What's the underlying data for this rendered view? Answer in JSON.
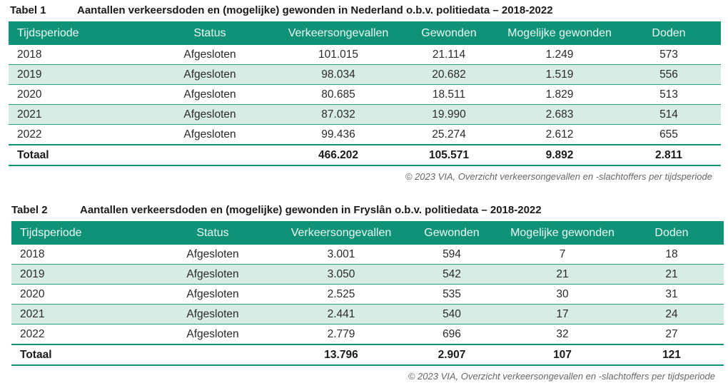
{
  "tables": [
    {
      "number": "Tabel 1",
      "title": "Aantallen verkeersdoden en (mogelijke) gewonden in Nederland o.b.v. politiedata – 2018-2022",
      "headers": [
        "Tijdsperiode",
        "Status",
        "Verkeersongevallen",
        "Gewonden",
        "Mogelijke gewonden",
        "Doden"
      ],
      "rows": [
        [
          "2018",
          "Afgesloten",
          "101.015",
          "21.114",
          "1.249",
          "573"
        ],
        [
          "2019",
          "Afgesloten",
          "98.034",
          "20.682",
          "1.519",
          "556"
        ],
        [
          "2020",
          "Afgesloten",
          "80.685",
          "18.511",
          "1.829",
          "513"
        ],
        [
          "2021",
          "Afgesloten",
          "87.032",
          "19.990",
          "2.683",
          "514"
        ],
        [
          "2022",
          "Afgesloten",
          "99.436",
          "25.274",
          "2.612",
          "655"
        ]
      ],
      "total": [
        "Totaal",
        "",
        "466.202",
        "105.571",
        "9.892",
        "2.811"
      ],
      "source": "© 2023 VIA, Overzicht verkeersongevallen en -slachtoffers per tijdsperiode"
    },
    {
      "number": "Tabel 2",
      "title": "Aantallen verkeersdoden en (mogelijke) gewonden in Fryslân o.b.v. politiedata – 2018-2022",
      "headers": [
        "Tijdsperiode",
        "Status",
        "Verkeersongevallen",
        "Gewonden",
        "Mogelijke gewonden",
        "Doden"
      ],
      "rows": [
        [
          "2018",
          "Afgesloten",
          "3.001",
          "594",
          "7",
          "18"
        ],
        [
          "2019",
          "Afgesloten",
          "3.050",
          "542",
          "21",
          "21"
        ],
        [
          "2020",
          "Afgesloten",
          "2.525",
          "535",
          "30",
          "31"
        ],
        [
          "2021",
          "Afgesloten",
          "2.441",
          "540",
          "17",
          "24"
        ],
        [
          "2022",
          "Afgesloten",
          "2.779",
          "696",
          "32",
          "27"
        ]
      ],
      "total": [
        "Totaal",
        "",
        "13.796",
        "2.907",
        "107",
        "121"
      ],
      "source": "© 2023 VIA, Overzicht verkeersongevallen en -slachtoffers per tijdsperiode"
    }
  ],
  "colors": {
    "header_bg": "#0f9277",
    "header_text": "#eafaf5",
    "alt_row_bg": "#d8ece6",
    "rule": "#2f9e83"
  }
}
